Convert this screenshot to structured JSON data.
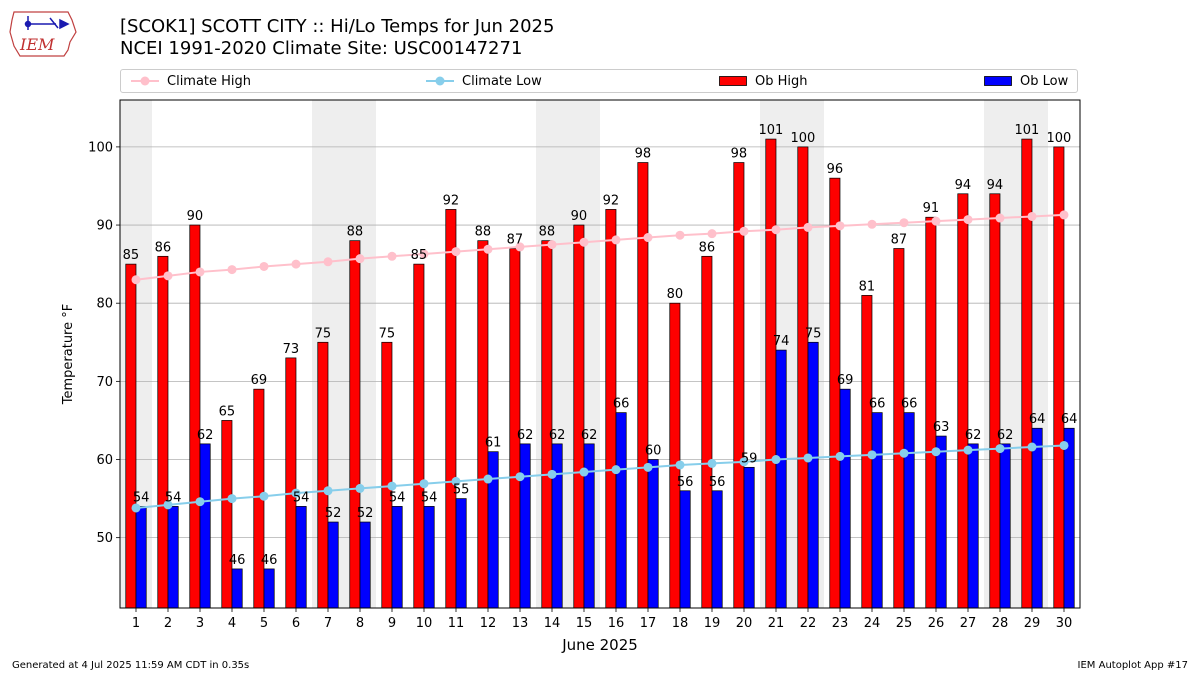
{
  "header": {
    "title_line1": "[SCOK1] SCOTT CITY :: Hi/Lo Temps for Jun 2025",
    "title_line2": "NCEI 1991-2020 Climate Site: USC00147271"
  },
  "logo": {
    "text": "IEM"
  },
  "legend": {
    "items": [
      {
        "label": "Climate High",
        "kind": "line",
        "color": "#ffc0cb"
      },
      {
        "label": "Climate Low",
        "kind": "line",
        "color": "#87ceeb"
      },
      {
        "label": "Ob High",
        "kind": "bar",
        "color": "#ff0000"
      },
      {
        "label": "Ob Low",
        "kind": "bar",
        "color": "#0000ff"
      }
    ]
  },
  "footer": {
    "left": "Generated at 4 Jul 2025 11:59 AM CDT in 0.35s",
    "right": "IEM Autoplot App #17"
  },
  "chart_data": {
    "type": "bar",
    "xlabel": "June 2025",
    "ylabel": "Temperature °F",
    "ylim": [
      41,
      106
    ],
    "yticks": [
      50,
      60,
      70,
      80,
      90,
      100
    ],
    "grid": true,
    "legend_position": "top",
    "categories": [
      "1",
      "2",
      "3",
      "4",
      "5",
      "6",
      "7",
      "8",
      "9",
      "10",
      "11",
      "12",
      "13",
      "14",
      "15",
      "16",
      "17",
      "18",
      "19",
      "20",
      "21",
      "22",
      "23",
      "24",
      "25",
      "26",
      "27",
      "28",
      "29",
      "30"
    ],
    "weekend_shading_days": [
      1,
      7,
      8,
      14,
      15,
      21,
      22,
      28,
      29
    ],
    "series": [
      {
        "name": "Ob High",
        "kind": "bar",
        "color": "#ff0000",
        "values": [
          85,
          86,
          90,
          65,
          69,
          73,
          75,
          88,
          75,
          85,
          92,
          88,
          87,
          88,
          90,
          92,
          98,
          80,
          86,
          98,
          101,
          100,
          96,
          81,
          87,
          91,
          94,
          94,
          101,
          100
        ]
      },
      {
        "name": "Ob Low",
        "kind": "bar",
        "color": "#0000ff",
        "values": [
          54,
          54,
          62,
          46,
          46,
          54,
          52,
          52,
          54,
          54,
          55,
          61,
          62,
          62,
          62,
          66,
          60,
          56,
          56,
          59,
          74,
          75,
          69,
          66,
          66,
          63,
          62,
          62,
          64,
          64
        ]
      },
      {
        "name": "Climate High",
        "kind": "line",
        "color": "#ffc0cb",
        "values": [
          83.0,
          83.5,
          84.0,
          84.3,
          84.7,
          85.0,
          85.3,
          85.7,
          86.0,
          86.3,
          86.6,
          86.9,
          87.2,
          87.5,
          87.8,
          88.1,
          88.4,
          88.7,
          88.9,
          89.2,
          89.4,
          89.7,
          89.9,
          90.1,
          90.3,
          90.5,
          90.7,
          90.9,
          91.1,
          91.3
        ]
      },
      {
        "name": "Climate Low",
        "kind": "line",
        "color": "#87ceeb",
        "values": [
          53.8,
          54.2,
          54.6,
          55.0,
          55.3,
          55.7,
          56.0,
          56.3,
          56.6,
          56.9,
          57.2,
          57.5,
          57.8,
          58.1,
          58.4,
          58.7,
          59.0,
          59.3,
          59.5,
          59.7,
          60.0,
          60.2,
          60.4,
          60.6,
          60.8,
          61.0,
          61.2,
          61.4,
          61.6,
          61.8
        ]
      }
    ]
  }
}
